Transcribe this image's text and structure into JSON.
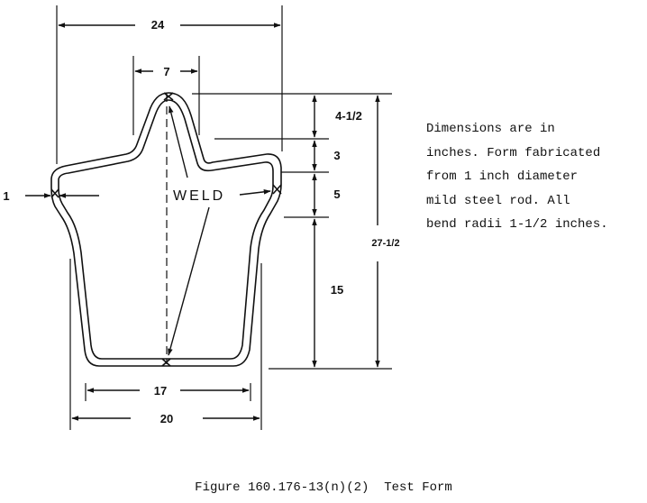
{
  "dimensions": {
    "overall_width": "24",
    "tip_width": "7",
    "rod_diameter": "1",
    "upper_point": "4-1/2",
    "middle_segment": "3",
    "lower_segment": "5",
    "body_height": "15",
    "total_height": "27-1/2",
    "inner_bottom_width": "17",
    "outer_bottom_width": "20"
  },
  "weld_label": "WELD",
  "notes": [
    "Dimensions are in",
    "inches.  Form fabricated",
    "from 1 inch diameter",
    "mild steel rod.  All",
    "bend radii 1-1/2 inches."
  ],
  "caption": "Figure 160.176-13(n)(2)  Test Form"
}
